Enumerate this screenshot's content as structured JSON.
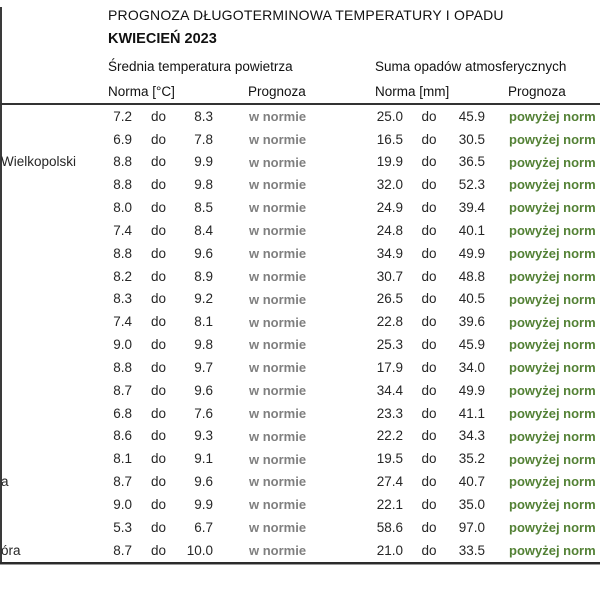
{
  "header": {
    "title": "PROGNOZA DŁUGOTERMINOWA TEMPERATURY I OPADU",
    "subtitle": "KWIECIEŃ 2023",
    "temp_group": "Średnia temperatura powietrza",
    "precip_group": "Suma opadów atmosferycznych",
    "temp_norma_label": "Norma [°C]",
    "temp_prognoza_label": "Prognoza",
    "precip_norma_label": "Norma [mm]",
    "precip_prognoza_label": "Prognoza"
  },
  "separator": "do",
  "colors": {
    "normal_gray": "#7f7f7f",
    "above_norm_green": "#538135",
    "text": "#262626",
    "border": "#333333"
  },
  "table": {
    "rows": [
      {
        "city": "",
        "t_low": "7.2",
        "t_high": "8.3",
        "t_prog": "w normie",
        "p_low": "25.0",
        "p_high": "45.9",
        "p_prog": "powyżej norm"
      },
      {
        "city": "",
        "t_low": "6.9",
        "t_high": "7.8",
        "t_prog": "w normie",
        "p_low": "16.5",
        "p_high": "30.5",
        "p_prog": "powyżej norm"
      },
      {
        "city": "Wielkopolski",
        "t_low": "8.8",
        "t_high": "9.9",
        "t_prog": "w normie",
        "p_low": "19.9",
        "p_high": "36.5",
        "p_prog": "powyżej norm"
      },
      {
        "city": "",
        "t_low": "8.8",
        "t_high": "9.8",
        "t_prog": "w normie",
        "p_low": "32.0",
        "p_high": "52.3",
        "p_prog": "powyżej norm"
      },
      {
        "city": "",
        "t_low": "8.0",
        "t_high": "8.5",
        "t_prog": "w normie",
        "p_low": "24.9",
        "p_high": "39.4",
        "p_prog": "powyżej norm"
      },
      {
        "city": "",
        "t_low": "7.4",
        "t_high": "8.4",
        "t_prog": "w normie",
        "p_low": "24.8",
        "p_high": "40.1",
        "p_prog": "powyżej norm"
      },
      {
        "city": "",
        "t_low": "8.8",
        "t_high": "9.6",
        "t_prog": "w normie",
        "p_low": "34.9",
        "p_high": "49.9",
        "p_prog": "powyżej norm"
      },
      {
        "city": "",
        "t_low": "8.2",
        "t_high": "8.9",
        "t_prog": "w normie",
        "p_low": "30.7",
        "p_high": "48.8",
        "p_prog": "powyżej norm"
      },
      {
        "city": "",
        "t_low": "8.3",
        "t_high": "9.2",
        "t_prog": "w normie",
        "p_low": "26.5",
        "p_high": "40.5",
        "p_prog": "powyżej norm"
      },
      {
        "city": "",
        "t_low": "7.4",
        "t_high": "8.1",
        "t_prog": "w normie",
        "p_low": "22.8",
        "p_high": "39.6",
        "p_prog": "powyżej norm"
      },
      {
        "city": "",
        "t_low": "9.0",
        "t_high": "9.8",
        "t_prog": "w normie",
        "p_low": "25.3",
        "p_high": "45.9",
        "p_prog": "powyżej norm"
      },
      {
        "city": "",
        "t_low": "8.8",
        "t_high": "9.7",
        "t_prog": "w normie",
        "p_low": "17.9",
        "p_high": "34.0",
        "p_prog": "powyżej norm"
      },
      {
        "city": "",
        "t_low": "8.7",
        "t_high": "9.6",
        "t_prog": "w normie",
        "p_low": "34.4",
        "p_high": "49.9",
        "p_prog": "powyżej norm"
      },
      {
        "city": "",
        "t_low": "6.8",
        "t_high": "7.6",
        "t_prog": "w normie",
        "p_low": "23.3",
        "p_high": "41.1",
        "p_prog": "powyżej norm"
      },
      {
        "city": "",
        "t_low": "8.6",
        "t_high": "9.3",
        "t_prog": "w normie",
        "p_low": "22.2",
        "p_high": "34.3",
        "p_prog": "powyżej norm"
      },
      {
        "city": "",
        "t_low": "8.1",
        "t_high": "9.1",
        "t_prog": "w normie",
        "p_low": "19.5",
        "p_high": "35.2",
        "p_prog": "powyżej norm"
      },
      {
        "city": "a",
        "t_low": "8.7",
        "t_high": "9.6",
        "t_prog": "w normie",
        "p_low": "27.4",
        "p_high": "40.7",
        "p_prog": "powyżej norm"
      },
      {
        "city": "",
        "t_low": "9.0",
        "t_high": "9.9",
        "t_prog": "w normie",
        "p_low": "22.1",
        "p_high": "35.0",
        "p_prog": "powyżej norm"
      },
      {
        "city": "",
        "t_low": "5.3",
        "t_high": "6.7",
        "t_prog": "w normie",
        "p_low": "58.6",
        "p_high": "97.0",
        "p_prog": "powyżej norm"
      },
      {
        "city": "óra",
        "t_low": "8.7",
        "t_high": "10.0",
        "t_prog": "w normie",
        "p_low": "21.0",
        "p_high": "33.5",
        "p_prog": "powyżej norm"
      }
    ]
  }
}
